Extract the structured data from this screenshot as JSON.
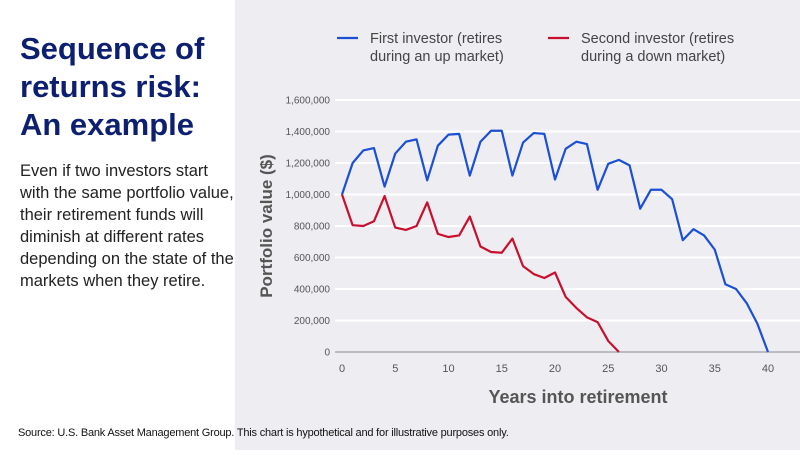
{
  "title": "Sequence of returns risk: An example",
  "body": "Even if two investors start with the same portfolio value, their retirement funds will diminish at different rates depending on the state of the markets when they retire.",
  "source": "Source: U.S. Bank Asset Management Group. This chart is hypothetical and for illustrative purposes only.",
  "chart_data": {
    "type": "line",
    "title": "",
    "xlabel": "Years into retirement",
    "ylabel": "Portfolio value ($)",
    "xlim": [
      0,
      40
    ],
    "ylim": [
      0,
      1600000
    ],
    "grid": true,
    "legend_position": "top",
    "x_ticks": [
      0,
      5,
      10,
      15,
      20,
      25,
      30,
      35,
      40
    ],
    "x_tick_labels": [
      "0",
      "5",
      "10",
      "15",
      "20",
      "25",
      "30",
      "35",
      "40"
    ],
    "y_ticks": [
      0,
      200000,
      400000,
      600000,
      800000,
      1000000,
      1200000,
      1400000,
      1600000
    ],
    "y_tick_labels": [
      "0",
      "200,000",
      "400,000",
      "600,000",
      "800,000",
      "1,000,000",
      "1,200,000",
      "1,400,000",
      "1,600,000"
    ],
    "series": [
      {
        "name": "First investor (retires during an up market)",
        "legend_lines": [
          "First investor (retires",
          "during an up market)"
        ],
        "color": "#1a4fd6",
        "x": [
          0,
          1,
          2,
          3,
          4,
          5,
          6,
          7,
          8,
          9,
          10,
          11,
          12,
          13,
          14,
          15,
          16,
          17,
          18,
          19,
          20,
          21,
          22,
          23,
          24,
          25,
          26,
          27,
          28,
          29,
          30,
          31,
          32,
          33,
          34,
          35,
          36,
          37,
          38,
          39,
          40
        ],
        "values": [
          1000000,
          1200000,
          1280000,
          1295000,
          1050000,
          1260000,
          1335000,
          1350000,
          1090000,
          1310000,
          1380000,
          1385000,
          1120000,
          1335000,
          1405000,
          1405000,
          1120000,
          1330000,
          1390000,
          1385000,
          1095000,
          1290000,
          1335000,
          1320000,
          1030000,
          1195000,
          1220000,
          1185000,
          910000,
          1030000,
          1030000,
          970000,
          710000,
          780000,
          740000,
          650000,
          430000,
          400000,
          310000,
          180000,
          0
        ]
      },
      {
        "name": "Second investor (retires during a down market)",
        "legend_lines": [
          "Second investor (retires",
          "during a down market)"
        ],
        "color": "#c8102e",
        "x": [
          0,
          1,
          2,
          3,
          4,
          5,
          6,
          7,
          8,
          9,
          10,
          11,
          12,
          13,
          14,
          15,
          16,
          17,
          18,
          19,
          20,
          21,
          22,
          23,
          24,
          25,
          26
        ],
        "values": [
          1000000,
          805000,
          800000,
          830000,
          990000,
          790000,
          775000,
          800000,
          950000,
          750000,
          730000,
          740000,
          860000,
          670000,
          635000,
          630000,
          720000,
          545000,
          495000,
          470000,
          505000,
          350000,
          280000,
          220000,
          190000,
          70000,
          0
        ]
      }
    ]
  }
}
